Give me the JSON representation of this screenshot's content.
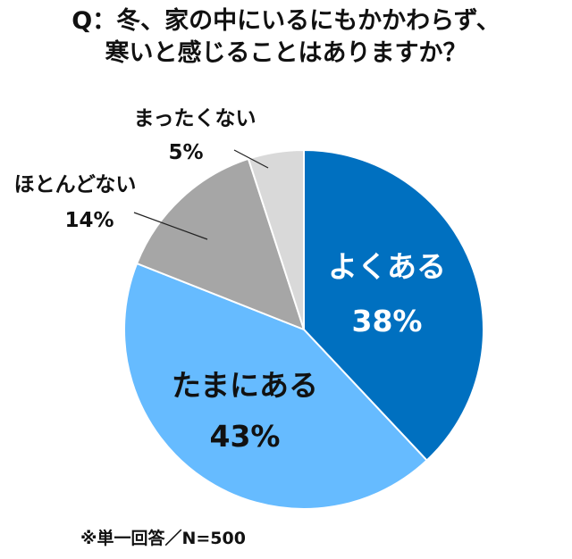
{
  "title": {
    "line1": "Q：冬、家の中にいるにもかかわらず、",
    "line2": "寒いと感じることはありますか？"
  },
  "note": "※単一回答／N=500",
  "chart_data": {
    "type": "pie",
    "title": "Q：冬、家の中にいるにもかかわらず、寒いと感じることはありますか？",
    "categories": [
      "よくある",
      "たまにある",
      "ほとんどない",
      "まったくない"
    ],
    "values": [
      38,
      43,
      14,
      5
    ],
    "labels": [
      "38%",
      "43%",
      "14%",
      "5%"
    ],
    "colors": [
      "#0070c0",
      "#66bbff",
      "#a6a6a6",
      "#d9d9d9"
    ],
    "start_angle_deg": 0,
    "direction": "clockwise",
    "legend": "none"
  }
}
